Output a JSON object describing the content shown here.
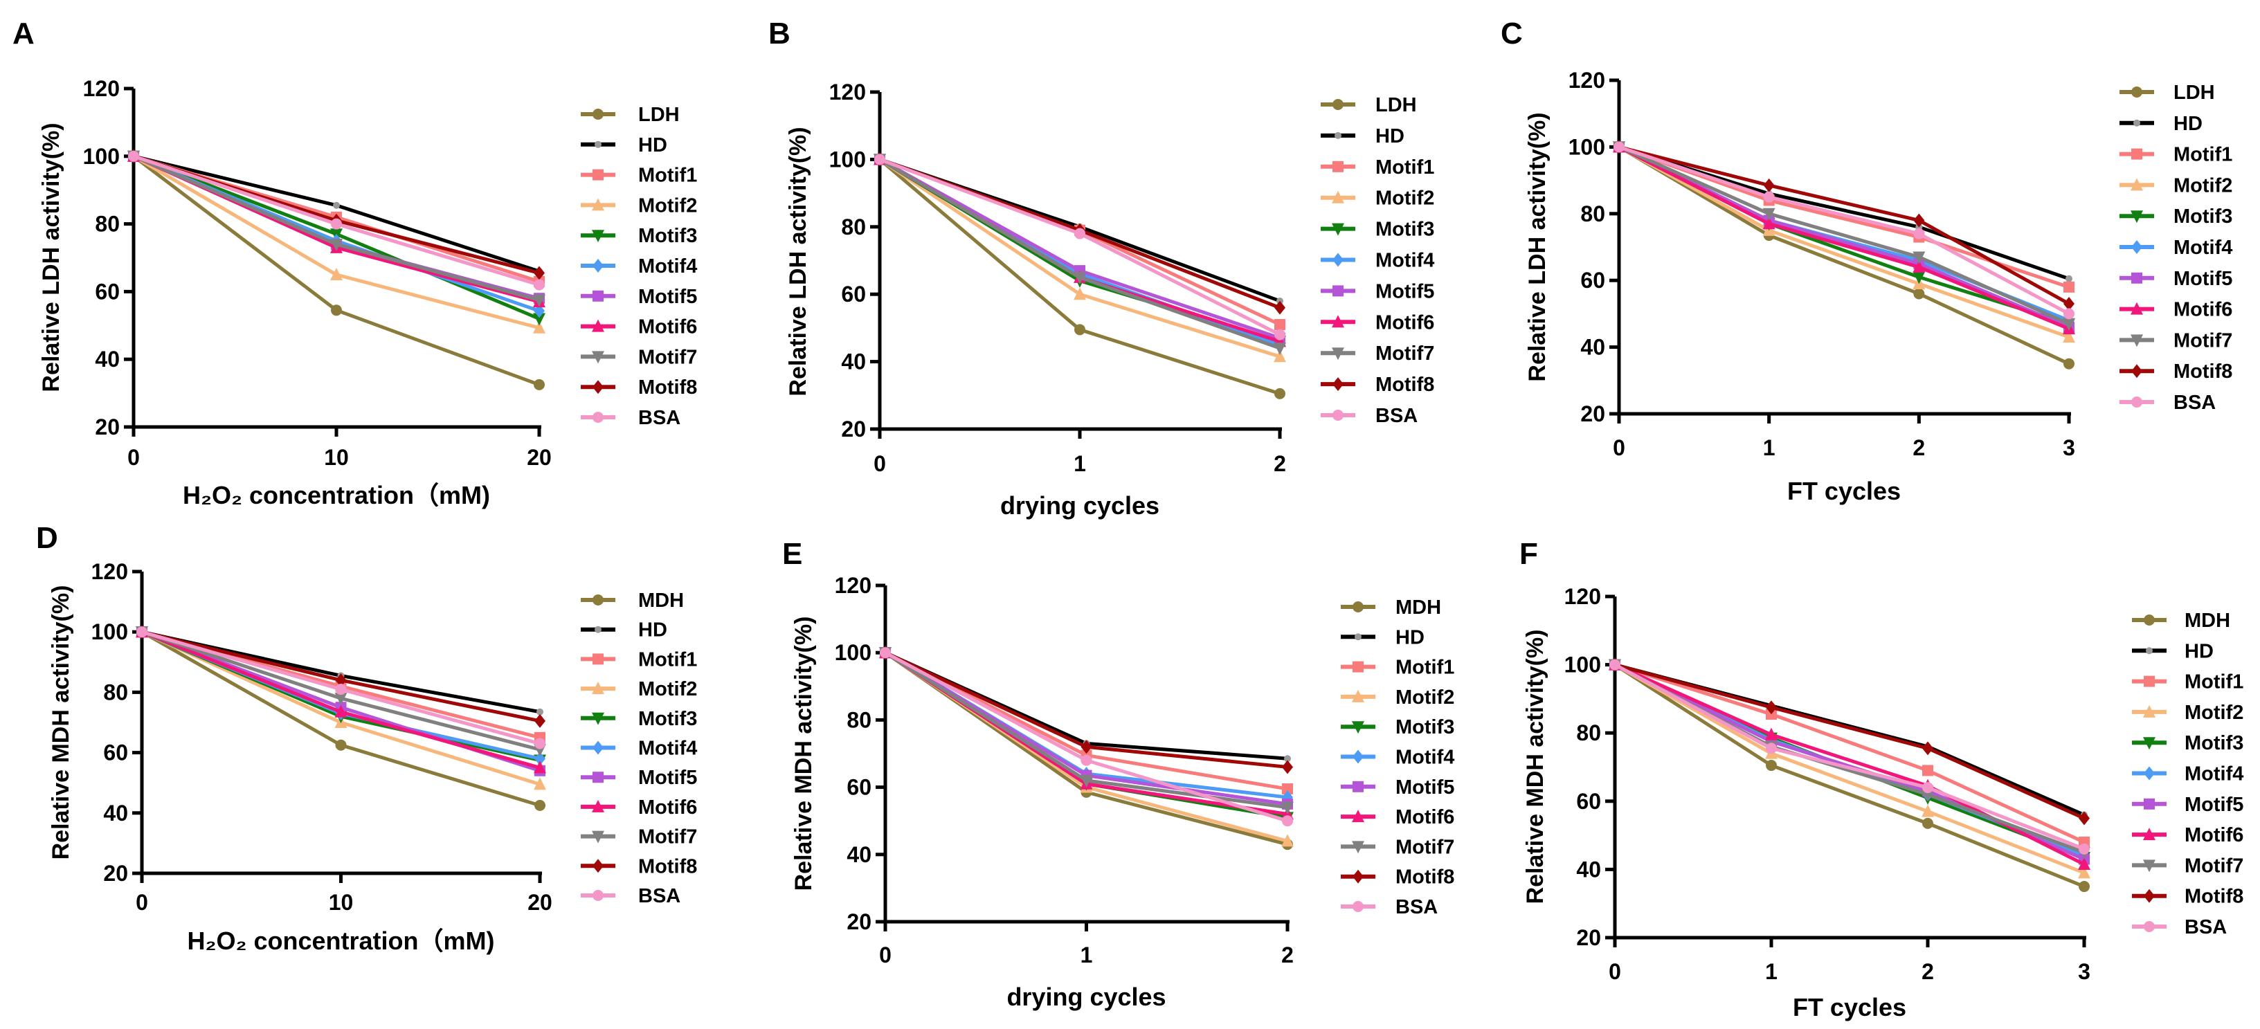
{
  "series_styles": {
    "LDH": {
      "color": "#8B7B3A",
      "marker": "circle"
    },
    "MDH": {
      "color": "#8B7B3A",
      "marker": "circle"
    },
    "HD": {
      "color": "#000000",
      "marker": "dot"
    },
    "Motif1": {
      "color": "#F97A7A",
      "marker": "square"
    },
    "Motif2": {
      "color": "#F8B77A",
      "marker": "triangle-up"
    },
    "Motif3": {
      "color": "#118011",
      "marker": "triangle-down"
    },
    "Motif4": {
      "color": "#4C9BF5",
      "marker": "diamond"
    },
    "Motif5": {
      "color": "#B455D8",
      "marker": "square"
    },
    "Motif6": {
      "color": "#F2157A",
      "marker": "triangle-up"
    },
    "Motif7": {
      "color": "#808080",
      "marker": "triangle-down"
    },
    "Motif8": {
      "color": "#A00808",
      "marker": "diamond"
    },
    "BSA": {
      "color": "#F596C8",
      "marker": "circle"
    }
  },
  "chart_data": [
    {
      "panel": "A",
      "type": "line",
      "xlabel": "H₂O₂  concentration（mM)",
      "ylabel": "Relative LDH activity(%)",
      "x": [
        0,
        10,
        20
      ],
      "xticks": [
        "0",
        "10",
        "20"
      ],
      "xlim": [
        0,
        20
      ],
      "ylim": [
        20,
        120
      ],
      "yticks": [
        "20",
        "40",
        "60",
        "80",
        "100",
        "120"
      ],
      "grid": false,
      "legend": "right",
      "series": [
        {
          "name": "LDH",
          "values": [
            100,
            54.5,
            32.5
          ]
        },
        {
          "name": "HD",
          "values": [
            100,
            85.5,
            66
          ]
        },
        {
          "name": "Motif1",
          "values": [
            100,
            82,
            63
          ]
        },
        {
          "name": "Motif2",
          "values": [
            100,
            65,
            49.3
          ]
        },
        {
          "name": "Motif3",
          "values": [
            100,
            77,
            52
          ]
        },
        {
          "name": "Motif4",
          "values": [
            100,
            75,
            54.3
          ]
        },
        {
          "name": "Motif5",
          "values": [
            100,
            74,
            58
          ]
        },
        {
          "name": "Motif6",
          "values": [
            100,
            73,
            57
          ]
        },
        {
          "name": "Motif7",
          "values": [
            100,
            74,
            57.5
          ]
        },
        {
          "name": "Motif8",
          "values": [
            100,
            81,
            65.5
          ]
        },
        {
          "name": "BSA",
          "values": [
            100,
            80,
            62
          ]
        }
      ]
    },
    {
      "panel": "B",
      "type": "line",
      "xlabel": "drying cycles",
      "ylabel": "Relative LDH activity(%)",
      "x": [
        0,
        1,
        2
      ],
      "xticks": [
        "0",
        "1",
        "2"
      ],
      "xlim": [
        0,
        2
      ],
      "ylim": [
        20,
        120
      ],
      "yticks": [
        "20",
        "40",
        "60",
        "80",
        "100",
        "120"
      ],
      "grid": false,
      "legend": "right",
      "series": [
        {
          "name": "LDH",
          "values": [
            100,
            49.5,
            30.5
          ]
        },
        {
          "name": "HD",
          "values": [
            100,
            80,
            58
          ]
        },
        {
          "name": "Motif1",
          "values": [
            100,
            79,
            51
          ]
        },
        {
          "name": "Motif2",
          "values": [
            100,
            60,
            41.5
          ]
        },
        {
          "name": "Motif3",
          "values": [
            100,
            64,
            46
          ]
        },
        {
          "name": "Motif4",
          "values": [
            100,
            66,
            45
          ]
        },
        {
          "name": "Motif5",
          "values": [
            100,
            67,
            47
          ]
        },
        {
          "name": "Motif6",
          "values": [
            100,
            65,
            46
          ]
        },
        {
          "name": "Motif7",
          "values": [
            100,
            65,
            44
          ]
        },
        {
          "name": "Motif8",
          "values": [
            100,
            79,
            56
          ]
        },
        {
          "name": "BSA",
          "values": [
            100,
            78,
            48
          ]
        }
      ]
    },
    {
      "panel": "C",
      "type": "line",
      "xlabel": "FT cycles",
      "ylabel": "Relative LDH activity(%)",
      "x": [
        0,
        1,
        2,
        3
      ],
      "xticks": [
        "0",
        "1",
        "2",
        "3"
      ],
      "xlim": [
        0,
        3
      ],
      "ylim": [
        20,
        120
      ],
      "yticks": [
        "20",
        "40",
        "60",
        "80",
        "100",
        "120"
      ],
      "grid": false,
      "legend": "right",
      "series": [
        {
          "name": "LDH",
          "values": [
            100,
            73.5,
            56,
            35
          ]
        },
        {
          "name": "HD",
          "values": [
            100,
            86,
            76,
            60.5
          ]
        },
        {
          "name": "Motif1",
          "values": [
            100,
            84,
            73,
            58
          ]
        },
        {
          "name": "Motif2",
          "values": [
            100,
            75,
            59,
            43
          ]
        },
        {
          "name": "Motif3",
          "values": [
            100,
            77,
            61,
            47
          ]
        },
        {
          "name": "Motif4",
          "values": [
            100,
            78,
            66,
            48
          ]
        },
        {
          "name": "Motif5",
          "values": [
            100,
            78,
            65,
            46
          ]
        },
        {
          "name": "Motif6",
          "values": [
            100,
            77,
            64,
            45.5
          ]
        },
        {
          "name": "Motif7",
          "values": [
            100,
            80,
            67,
            47
          ]
        },
        {
          "name": "Motif8",
          "values": [
            100,
            88.5,
            78,
            53
          ]
        },
        {
          "name": "BSA",
          "values": [
            100,
            85,
            74,
            50
          ]
        }
      ]
    },
    {
      "panel": "D",
      "type": "line",
      "xlabel": "H₂O₂  concentration（mM)",
      "ylabel": "Relative MDH activity(%)",
      "x": [
        0,
        10,
        20
      ],
      "xticks": [
        "0",
        "10",
        "20"
      ],
      "xlim": [
        0,
        20
      ],
      "ylim": [
        20,
        120
      ],
      "yticks": [
        "20",
        "40",
        "60",
        "80",
        "100",
        "120"
      ],
      "grid": false,
      "legend": "right",
      "series": [
        {
          "name": "MDH",
          "values": [
            100,
            62.5,
            42.5
          ]
        },
        {
          "name": "HD",
          "values": [
            100,
            85.5,
            73.5
          ]
        },
        {
          "name": "Motif1",
          "values": [
            100,
            82,
            65
          ]
        },
        {
          "name": "Motif2",
          "values": [
            100,
            70,
            49.5
          ]
        },
        {
          "name": "Motif3",
          "values": [
            100,
            72,
            57.5
          ]
        },
        {
          "name": "Motif4",
          "values": [
            100,
            73,
            58
          ]
        },
        {
          "name": "Motif5",
          "values": [
            100,
            75,
            54
          ]
        },
        {
          "name": "Motif6",
          "values": [
            100,
            73.5,
            55
          ]
        },
        {
          "name": "Motif7",
          "values": [
            100,
            78,
            61
          ]
        },
        {
          "name": "Motif8",
          "values": [
            100,
            84,
            70.5
          ]
        },
        {
          "name": "BSA",
          "values": [
            100,
            81,
            63
          ]
        }
      ]
    },
    {
      "panel": "E",
      "type": "line",
      "xlabel": "drying cycles",
      "ylabel": "Relative MDH activity(%)",
      "x": [
        0,
        1,
        2
      ],
      "xticks": [
        "0",
        "1",
        "2"
      ],
      "xlim": [
        0,
        2
      ],
      "ylim": [
        20,
        120
      ],
      "yticks": [
        "20",
        "40",
        "60",
        "80",
        "100",
        "120"
      ],
      "grid": false,
      "legend": "right",
      "series": [
        {
          "name": "MDH",
          "values": [
            100,
            58.5,
            43
          ]
        },
        {
          "name": "HD",
          "values": [
            100,
            73,
            68.5
          ]
        },
        {
          "name": "Motif1",
          "values": [
            100,
            69.5,
            59.5
          ]
        },
        {
          "name": "Motif2",
          "values": [
            100,
            60,
            44
          ]
        },
        {
          "name": "Motif3",
          "values": [
            100,
            61,
            51
          ]
        },
        {
          "name": "Motif4",
          "values": [
            100,
            64,
            57
          ]
        },
        {
          "name": "Motif5",
          "values": [
            100,
            63.5,
            55
          ]
        },
        {
          "name": "Motif6",
          "values": [
            100,
            61,
            52
          ]
        },
        {
          "name": "Motif7",
          "values": [
            100,
            62,
            54
          ]
        },
        {
          "name": "Motif8",
          "values": [
            100,
            72,
            66
          ]
        },
        {
          "name": "BSA",
          "values": [
            100,
            68,
            50
          ]
        }
      ]
    },
    {
      "panel": "F",
      "type": "line",
      "xlabel": "FT cycles",
      "ylabel": "Relative MDH activity(%)",
      "x": [
        0,
        1,
        2,
        3
      ],
      "xticks": [
        "0",
        "1",
        "2",
        "3"
      ],
      "xlim": [
        0,
        3
      ],
      "ylim": [
        20,
        120
      ],
      "yticks": [
        "20",
        "40",
        "60",
        "80",
        "100",
        "120"
      ],
      "grid": false,
      "legend": "right",
      "series": [
        {
          "name": "MDH",
          "values": [
            100,
            70.5,
            53.5,
            35
          ]
        },
        {
          "name": "HD",
          "values": [
            100,
            88,
            76,
            56
          ]
        },
        {
          "name": "Motif1",
          "values": [
            100,
            85.5,
            69,
            48
          ]
        },
        {
          "name": "Motif2",
          "values": [
            100,
            74,
            57,
            39
          ]
        },
        {
          "name": "Motif3",
          "values": [
            100,
            78.5,
            61,
            43.5
          ]
        },
        {
          "name": "Motif4",
          "values": [
            100,
            78,
            62,
            44
          ]
        },
        {
          "name": "Motif5",
          "values": [
            100,
            77.5,
            63,
            43
          ]
        },
        {
          "name": "Motif6",
          "values": [
            100,
            79.5,
            64.5,
            41.5
          ]
        },
        {
          "name": "Motif7",
          "values": [
            100,
            76,
            62,
            45
          ]
        },
        {
          "name": "Motif8",
          "values": [
            100,
            87.5,
            75.5,
            55
          ]
        },
        {
          "name": "BSA",
          "values": [
            100,
            75.5,
            64,
            46
          ]
        }
      ]
    }
  ]
}
